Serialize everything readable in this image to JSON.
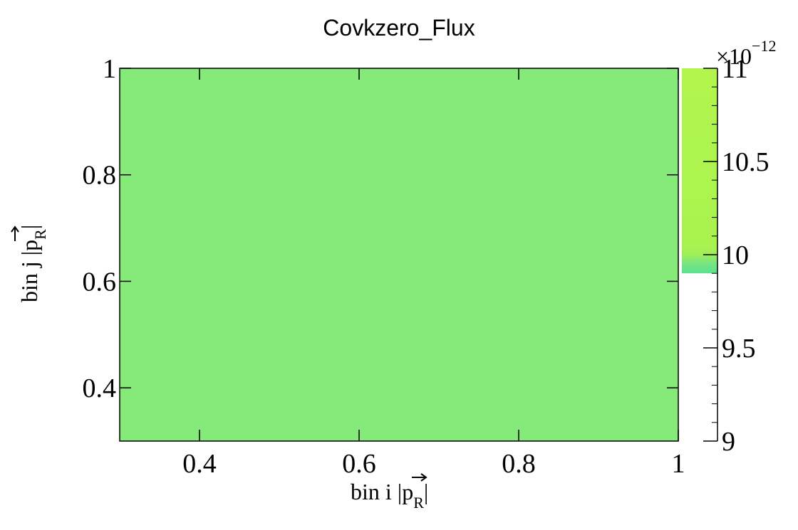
{
  "chart_data": {
    "type": "heatmap",
    "title": "Covkzero_Flux",
    "xlabel": {
      "main": "bin i |",
      "vec": "p",
      "sub": "R",
      "end": "|"
    },
    "ylabel": {
      "main": "bin j |",
      "vec": "p",
      "sub": "R",
      "end": "|"
    },
    "xlim": [
      0.3,
      1.0
    ],
    "ylim": [
      0.3,
      1.0
    ],
    "x_ticks": [
      {
        "value": 0.4,
        "label": "0.4"
      },
      {
        "value": 0.6,
        "label": "0.6"
      },
      {
        "value": 0.8,
        "label": "0.8"
      },
      {
        "value": 1.0,
        "label": "1"
      }
    ],
    "y_ticks": [
      {
        "value": 0.4,
        "label": "0.4"
      },
      {
        "value": 0.6,
        "label": "0.6"
      },
      {
        "value": 0.8,
        "label": "0.8"
      },
      {
        "value": 1.0,
        "label": "1"
      }
    ],
    "cells": [
      {
        "x0": 0.3,
        "x1": 1.0,
        "y0": 0.3,
        "y1": 1.0,
        "value": 9.85e-12,
        "color": "#86ea7a"
      }
    ],
    "colorbar": {
      "min": 9.0,
      "max": 11.0,
      "exponent_label": "×10",
      "exponent_power": "−12",
      "ticks": [
        {
          "value": 9.0,
          "label": "9"
        },
        {
          "value": 9.5,
          "label": "9.5"
        },
        {
          "value": 10.0,
          "label": "10"
        },
        {
          "value": 10.5,
          "label": "10.5"
        },
        {
          "value": 11.0,
          "label": "11"
        }
      ],
      "filled_from": 9.9,
      "gradient": [
        {
          "value": 9.9,
          "color": "#5ce18f"
        },
        {
          "value": 9.95,
          "color": "#75e586"
        },
        {
          "value": 10.0,
          "color": "#9eef58"
        },
        {
          "value": 10.05,
          "color": "#a9f34f"
        },
        {
          "value": 11.0,
          "color": "#b2f54d"
        }
      ]
    }
  }
}
